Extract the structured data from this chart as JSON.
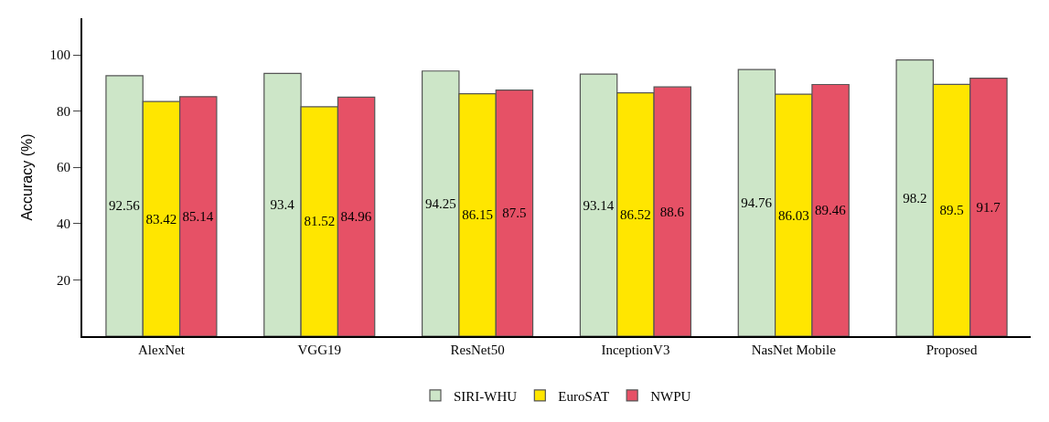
{
  "chart_data": {
    "type": "bar",
    "ylabel": "Accuracy (%)",
    "categories": [
      "AlexNet",
      "VGG19",
      "ResNet50",
      "InceptionV3",
      "NasNet Mobile",
      "Proposed"
    ],
    "series": [
      {
        "name": "SIRI-WHU",
        "color": "#cde6c8",
        "values": [
          92.56,
          93.4,
          94.25,
          93.14,
          94.76,
          98.2
        ]
      },
      {
        "name": "EuroSAT",
        "color": "#ffe600",
        "values": [
          83.42,
          81.52,
          86.15,
          86.52,
          86.03,
          89.5
        ]
      },
      {
        "name": "NWPU",
        "color": "#e65166",
        "values": [
          85.14,
          84.96,
          87.5,
          88.6,
          89.46,
          91.7
        ]
      }
    ],
    "ylim": [
      0,
      113
    ],
    "yticks": [
      20,
      40,
      60,
      80,
      100
    ],
    "legend": "bottom",
    "data_labels": true
  }
}
